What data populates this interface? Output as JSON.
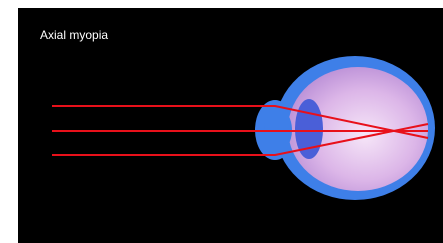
{
  "title": "Axial myopia"
}
